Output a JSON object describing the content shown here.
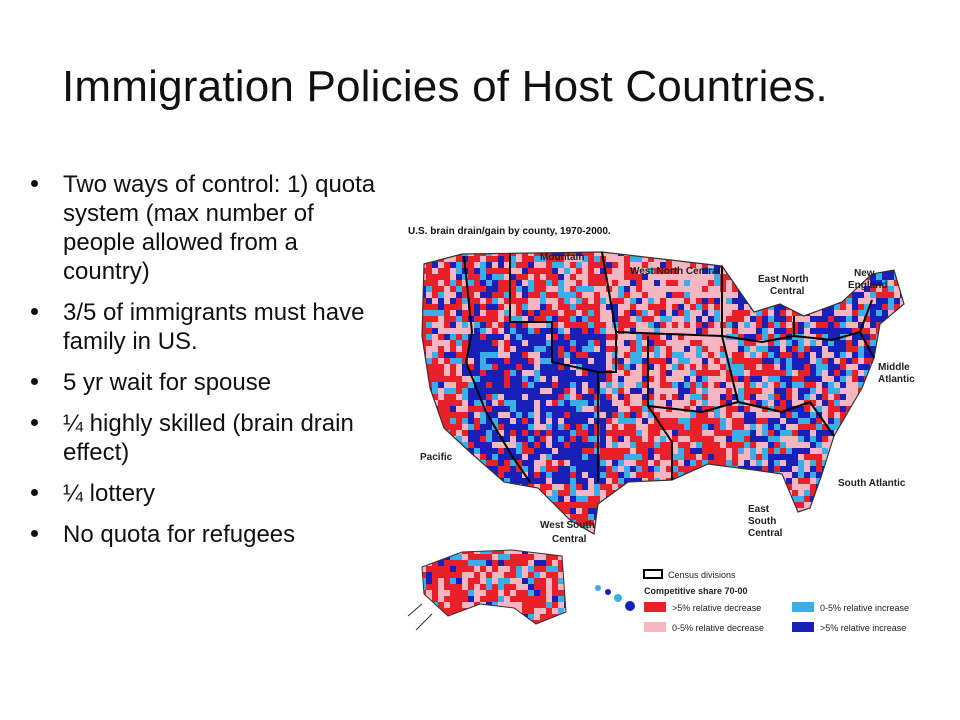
{
  "slide": {
    "title": "Immigration Policies of Host Countries."
  },
  "bullets": [
    "Two ways of control: 1) quota system (max number of people allowed from a country)",
    "3/5 of immigrants must have family in US.",
    "5 yr wait for spouse",
    "¼ highly skilled (brain drain effect)",
    "¼ lottery",
    "No quota for refugees"
  ],
  "map": {
    "title": "U.S. brain drain/gain by county, 1970-2000.",
    "regions": {
      "mountain": "Mountain",
      "west_north_central": "West North Central",
      "east_north_central": [
        "East North",
        "Central"
      ],
      "new_england": [
        "New",
        "England"
      ],
      "middle_atlantic": [
        "Middle",
        "Atlantic"
      ],
      "pacific": "Pacific",
      "south_atlantic": "South Atlantic",
      "east_south_central": [
        "East",
        "South",
        "Central"
      ],
      "west_south_central": [
        "West South",
        "Central"
      ]
    },
    "legend": {
      "census_divisions": "Census divisions",
      "heading": "Competitive share 70-00",
      "items": [
        {
          "label": ">5% relative decrease",
          "color": "#e8202a"
        },
        {
          "label": "0-5% relative increase",
          "color": "#3aaee8"
        },
        {
          "label": "0-5% relative decrease",
          "color": "#f4b6c0"
        },
        {
          "label": ">5% relative increase",
          "color": "#1820b8"
        }
      ]
    }
  }
}
